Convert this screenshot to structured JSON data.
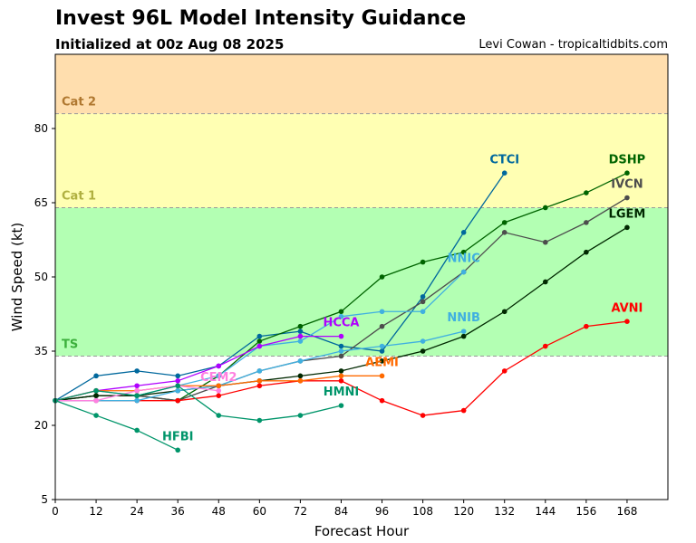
{
  "header": {
    "title": "Invest 96L Model Intensity Guidance",
    "subtitle": "Initialized at 00z Aug 08 2025",
    "credit": "Levi Cowan - tropicaltidbits.com"
  },
  "chart_data": {
    "type": "line",
    "title": "Invest 96L Model Intensity Guidance",
    "xlabel": "Forecast Hour",
    "ylabel": "Wind Speed (kt)",
    "xlim": [
      0,
      180
    ],
    "ylim": [
      5,
      95
    ],
    "xticks": [
      0,
      12,
      24,
      36,
      48,
      60,
      72,
      84,
      96,
      108,
      120,
      132,
      144,
      156,
      168
    ],
    "yticks": [
      5,
      20,
      35,
      50,
      65,
      80
    ],
    "bands": [
      {
        "label": "TS",
        "from": 34,
        "to": 64,
        "color": "#b3ffb3",
        "label_color": "#3cb03c"
      },
      {
        "label": "Cat 1",
        "from": 64,
        "to": 83,
        "color": "#ffffb3",
        "label_color": "#b0b040"
      },
      {
        "label": "Cat 2",
        "from": 83,
        "to": 95,
        "color": "#ffdeae",
        "label_color": "#b07830"
      }
    ],
    "series": [
      {
        "name": "CTCI",
        "color": "#00689d",
        "label_at": [
          132,
          73
        ],
        "x": [
          0,
          12,
          24,
          36,
          48,
          60,
          72,
          84,
          96,
          108,
          120,
          132
        ],
        "values": [
          25,
          30,
          31,
          30,
          32,
          38,
          39,
          36,
          35,
          46,
          59,
          71
        ]
      },
      {
        "name": "DSHP",
        "color": "#006400",
        "label_at": [
          168,
          73
        ],
        "x": [
          0,
          12,
          24,
          36,
          48,
          60,
          72,
          84,
          96,
          108,
          120,
          132,
          144,
          156,
          168
        ],
        "values": [
          25,
          26,
          26,
          25,
          30,
          37,
          40,
          43,
          50,
          53,
          55,
          61,
          64,
          67,
          71
        ]
      },
      {
        "name": "IVCN",
        "color": "#4d4d4d",
        "label_at": [
          168,
          68
        ],
        "x": [
          0,
          12,
          24,
          36,
          48,
          60,
          72,
          84,
          96,
          108,
          120,
          132,
          144,
          156,
          168
        ],
        "values": [
          25,
          26,
          26,
          25,
          28,
          31,
          33,
          34,
          40,
          45,
          51,
          59,
          57,
          61,
          66
        ]
      },
      {
        "name": "LGEM",
        "color": "#002800",
        "label_at": [
          168,
          62
        ],
        "x": [
          0,
          12,
          24,
          36,
          48,
          60,
          72,
          84,
          96,
          108,
          120,
          132,
          144,
          156,
          168
        ],
        "values": [
          25,
          26,
          26,
          27,
          28,
          29,
          30,
          31,
          33,
          35,
          38,
          43,
          49,
          55,
          60
        ]
      },
      {
        "name": "AVNI",
        "color": "#ff0000",
        "label_at": [
          168,
          43
        ],
        "x": [
          0,
          12,
          24,
          36,
          48,
          60,
          72,
          84,
          96,
          108,
          120,
          132,
          144,
          156,
          168
        ],
        "values": [
          25,
          25,
          25,
          25,
          26,
          28,
          29,
          29,
          25,
          22,
          23,
          31,
          36,
          40,
          41
        ]
      },
      {
        "name": "NNIC",
        "color": "#40b0e0",
        "label_at": [
          120,
          53
        ],
        "x": [
          0,
          12,
          24,
          36,
          48,
          60,
          72,
          84,
          96,
          108,
          120
        ],
        "values": [
          25,
          27,
          26,
          28,
          30,
          36,
          37,
          42,
          43,
          43,
          51
        ]
      },
      {
        "name": "NNIB",
        "color": "#40b0e0",
        "label_at": [
          120,
          41
        ],
        "x": [
          0,
          12,
          24,
          36,
          48,
          60,
          72,
          84,
          96,
          108,
          120
        ],
        "values": [
          25,
          25,
          25,
          27,
          28,
          31,
          33,
          35,
          36,
          37,
          39
        ]
      },
      {
        "name": "HCCA",
        "color": "#b000ff",
        "label_at": [
          84,
          40
        ],
        "x": [
          0,
          12,
          24,
          36,
          48,
          60,
          72,
          84
        ],
        "values": [
          25,
          27,
          28,
          29,
          32,
          36,
          38,
          38
        ]
      },
      {
        "name": "AEMI",
        "color": "#ff6a00",
        "label_at": [
          96,
          32
        ],
        "x": [
          0,
          12,
          24,
          36,
          48,
          60,
          72,
          84,
          96
        ],
        "values": [
          25,
          27,
          27,
          28,
          28,
          29,
          29,
          30,
          30
        ]
      },
      {
        "name": "CEM2",
        "color": "#ff80e0",
        "label_at": [
          48,
          29
        ],
        "x": [
          0,
          12,
          24,
          36,
          48
        ],
        "values": [
          25,
          25,
          27,
          28,
          27
        ]
      },
      {
        "name": "HMNI",
        "color": "#00956a",
        "label_at": [
          84,
          26
        ],
        "x": [
          0,
          12,
          24,
          36,
          48,
          60,
          72,
          84
        ],
        "values": [
          25,
          27,
          26,
          28,
          22,
          21,
          22,
          24
        ]
      },
      {
        "name": "HFBI",
        "color": "#00956a",
        "label_at": [
          36,
          17
        ],
        "x": [
          0,
          12,
          24,
          36
        ],
        "values": [
          25,
          22,
          19,
          15
        ]
      }
    ]
  }
}
